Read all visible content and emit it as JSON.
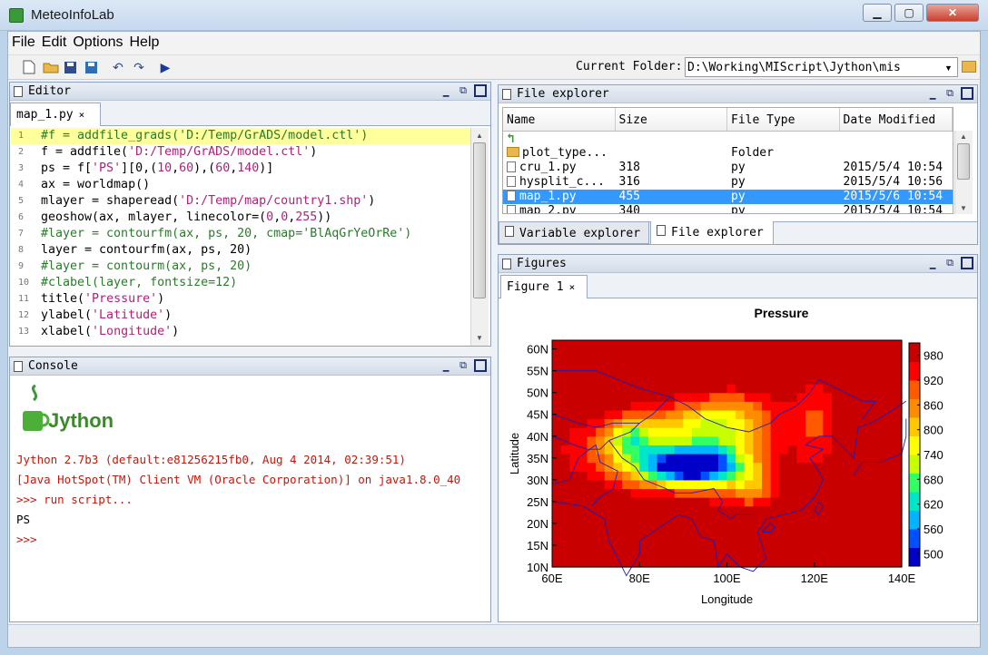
{
  "window": {
    "title": "MeteoInfoLab",
    "minimize": "▁",
    "maximize": "▢",
    "close": "✕"
  },
  "menubar": [
    "File",
    "Edit",
    "Options",
    "Help"
  ],
  "toolbar": {
    "folder_label": "Current Folder:",
    "folder_value": "D:\\Working\\MIScript\\Jython\\mis"
  },
  "editor": {
    "title": "Editor",
    "tab": "map_1.py",
    "lines": [
      "#f = addfile_grads('D:/Temp/GrADS/model.ctl')",
      "f = addfile('D:/Temp/GrADS/model.ctl')",
      "ps = f['PS'][0,(10,60),(60,140)]",
      "ax = worldmap()",
      "mlayer = shaperead('D:/Temp/map/country1.shp')",
      "geoshow(ax, mlayer, linecolor=(0,0,255))",
      "#layer = contourfm(ax, ps, 20, cmap='BlAqGrYeOrRe')",
      "layer = contourfm(ax, ps, 20)",
      "#layer = contourm(ax, ps, 20)",
      "#clabel(layer, fontsize=12)",
      "title('Pressure')",
      "ylabel('Latitude')",
      "xlabel('Longitude')"
    ]
  },
  "console": {
    "title": "Console",
    "logo_text": "Jython",
    "lines": [
      "Jython 2.7b3 (default:e81256215fb0, Aug 4 2014, 02:39:51)",
      "[Java HotSpot(TM) Client VM (Oracle Corporation)] on java1.8.0_40",
      ">>> run script...",
      "PS",
      ">>>"
    ]
  },
  "file_explorer": {
    "title": "File explorer",
    "columns": [
      "Name",
      "Size",
      "File Type",
      "Date Modified"
    ],
    "rows": [
      {
        "name": "",
        "size": "",
        "type": "",
        "date": "",
        "icon": "up-arrow-icon"
      },
      {
        "name": "plot_type...",
        "size": "",
        "type": "Folder",
        "date": "",
        "icon": "folder-icon"
      },
      {
        "name": "cru_1.py",
        "size": "318",
        "type": "py",
        "date": "2015/5/4 10:54",
        "icon": "file-icon"
      },
      {
        "name": "hysplit_c...",
        "size": "316",
        "type": "py",
        "date": "2015/5/4 10:56",
        "icon": "file-icon"
      },
      {
        "name": "map_1.py",
        "size": "455",
        "type": "py",
        "date": "2015/5/6 10:54",
        "icon": "file-icon",
        "selected": true
      },
      {
        "name": "map_2.py",
        "size": "340",
        "type": "py",
        "date": "2015/5/4 10:54",
        "icon": "file-icon"
      }
    ],
    "bottom_tabs": [
      "Variable explorer",
      "File explorer"
    ]
  },
  "figures": {
    "title": "Figures",
    "tab": "Figure 1"
  },
  "chart_data": {
    "type": "heatmap",
    "title": "Pressure",
    "xlabel": "Longitude",
    "ylabel": "Latitude",
    "xlim": [
      60,
      140
    ],
    "ylim": [
      10,
      62
    ],
    "xticks": [
      "60E",
      "80E",
      "100E",
      "120E",
      "140E"
    ],
    "yticks": [
      "10N",
      "15N",
      "20N",
      "25N",
      "30N",
      "35N",
      "40N",
      "45N",
      "50N",
      "55N",
      "60N"
    ],
    "colorbar_ticks": [
      980,
      920,
      860,
      800,
      740,
      680,
      620,
      560,
      500
    ],
    "colorbar_range": [
      470,
      1010
    ],
    "colors": [
      "#0000c8",
      "#0050ff",
      "#00b4ff",
      "#00e6c8",
      "#32ff64",
      "#c8ff00",
      "#ffff00",
      "#ffc800",
      "#ff8c00",
      "#ff5a00",
      "#ff0000",
      "#c80000"
    ]
  }
}
